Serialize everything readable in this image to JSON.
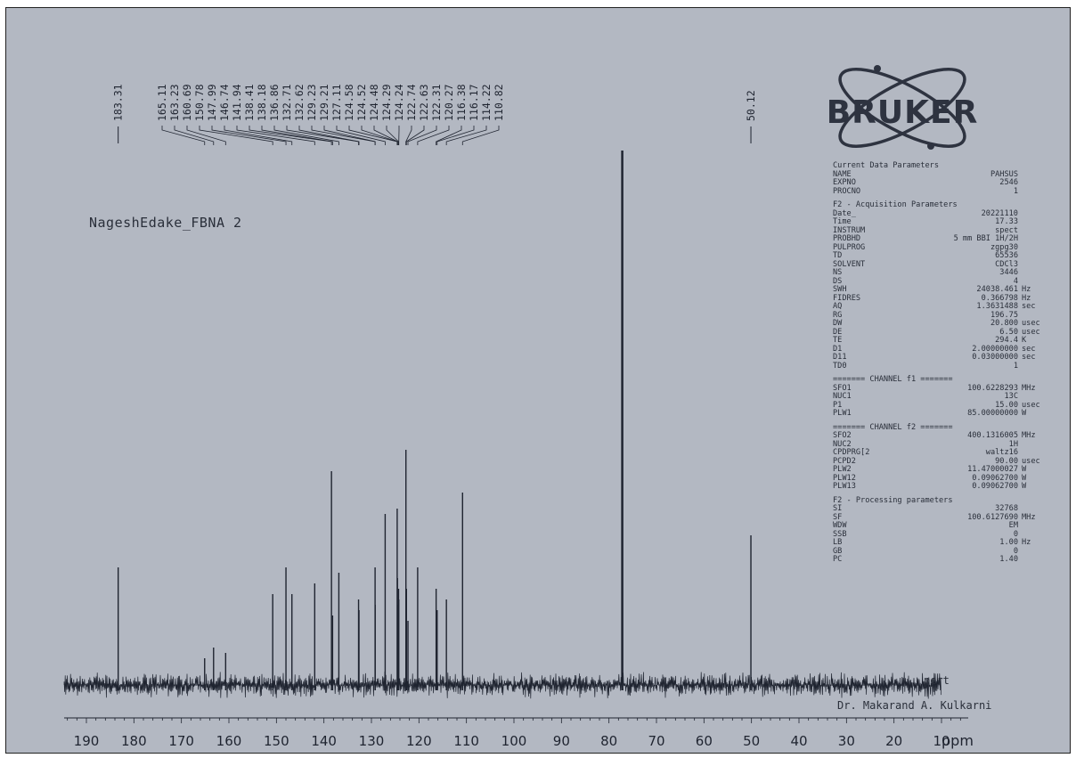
{
  "sample": {
    "name": "NageshEdake_FBNA 2"
  },
  "logo": {
    "text": "BRUKER"
  },
  "acquisition_params": {
    "current_title": "Current Data Parameters",
    "current": [
      [
        "NAME",
        "PAHSUS",
        ""
      ],
      [
        "EXPNO",
        "2546",
        ""
      ],
      [
        "PROCNO",
        "1",
        ""
      ]
    ],
    "f2_acq_title": "F2 - Acquisition Parameters",
    "f2_acq": [
      [
        "Date_",
        "20221110",
        ""
      ],
      [
        "Time",
        "17.33",
        ""
      ],
      [
        "INSTRUM",
        "spect",
        ""
      ],
      [
        "PROBHD",
        "5 mm BBI 1H/2H",
        ""
      ],
      [
        "PULPROG",
        "zgpg30",
        ""
      ],
      [
        "TD",
        "65536",
        ""
      ],
      [
        "SOLVENT",
        "CDCl3",
        ""
      ],
      [
        "NS",
        "3446",
        ""
      ],
      [
        "DS",
        "4",
        ""
      ],
      [
        "SWH",
        "24038.461",
        "Hz"
      ],
      [
        "FIDRES",
        "0.366798",
        "Hz"
      ],
      [
        "AQ",
        "1.3631488",
        "sec"
      ],
      [
        "RG",
        "196.75",
        ""
      ],
      [
        "DW",
        "20.800",
        "usec"
      ],
      [
        "DE",
        "6.50",
        "usec"
      ],
      [
        "TE",
        "294.4",
        "K"
      ],
      [
        "D1",
        "2.00000000",
        "sec"
      ],
      [
        "D11",
        "0.03000000",
        "sec"
      ],
      [
        "TD0",
        "1",
        ""
      ]
    ],
    "ch1_title": "======= CHANNEL f1 =======",
    "ch1": [
      [
        "SFO1",
        "100.6228293",
        "MHz"
      ],
      [
        "NUC1",
        "13C",
        ""
      ],
      [
        "P1",
        "15.00",
        "usec"
      ],
      [
        "PLW1",
        "85.00000000",
        "W"
      ]
    ],
    "ch2_title": "======= CHANNEL f2 =======",
    "ch2": [
      [
        "SFO2",
        "400.1316005",
        "MHz"
      ],
      [
        "NUC2",
        "1H",
        ""
      ],
      [
        "CPDPRG[2",
        "waltz16",
        ""
      ],
      [
        "PCPD2",
        "90.00",
        "usec"
      ],
      [
        "PLW2",
        "11.47000027",
        "W"
      ],
      [
        "PLW12",
        "0.09062700",
        "W"
      ],
      [
        "PLW13",
        "0.09062700",
        "W"
      ]
    ],
    "proc_title": "F2 - Processing parameters",
    "proc": [
      [
        "SI",
        "32768",
        ""
      ],
      [
        "SF",
        "100.6127690",
        "MHz"
      ],
      [
        "WDW",
        "EM",
        ""
      ],
      [
        "SSB",
        "0",
        ""
      ],
      [
        "LB",
        "1.00",
        "Hz"
      ],
      [
        "GB",
        "0",
        ""
      ],
      [
        "PC",
        "1.40",
        ""
      ]
    ]
  },
  "operator": {
    "line1": "pert",
    "line2": "Dr. Makarand A. Kulkarni"
  },
  "chart_data": {
    "type": "line",
    "title": "",
    "xlabel": "ppm",
    "x_reversed": true,
    "xlim": [
      200,
      0
    ],
    "x_ticks": [
      "190",
      "180",
      "170",
      "160",
      "150",
      "140",
      "130",
      "120",
      "110",
      "100",
      "90",
      "80",
      "70",
      "60",
      "50",
      "40",
      "30",
      "20",
      "10"
    ],
    "peak_labels": [
      "183.31",
      "165.11",
      "163.23",
      "160.69",
      "150.78",
      "147.99",
      "146.74",
      "141.94",
      "138.41",
      "138.18",
      "136.86",
      "132.71",
      "132.62",
      "129.23",
      "129.21",
      "127.11",
      "124.58",
      "124.52",
      "124.48",
      "124.29",
      "124.24",
      "122.74",
      "122.63",
      "122.31",
      "120.27",
      "116.38",
      "116.17",
      "114.22",
      "110.82",
      "50.12"
    ],
    "peaks": [
      {
        "ppm": 183.31,
        "intensity": 0.22
      },
      {
        "ppm": 165.11,
        "intensity": 0.05
      },
      {
        "ppm": 163.23,
        "intensity": 0.07
      },
      {
        "ppm": 160.69,
        "intensity": 0.06
      },
      {
        "ppm": 150.78,
        "intensity": 0.17
      },
      {
        "ppm": 147.99,
        "intensity": 0.22
      },
      {
        "ppm": 146.74,
        "intensity": 0.17
      },
      {
        "ppm": 141.94,
        "intensity": 0.19
      },
      {
        "ppm": 138.41,
        "intensity": 0.4
      },
      {
        "ppm": 138.18,
        "intensity": 0.13
      },
      {
        "ppm": 136.86,
        "intensity": 0.21
      },
      {
        "ppm": 132.71,
        "intensity": 0.16
      },
      {
        "ppm": 132.62,
        "intensity": 0.14
      },
      {
        "ppm": 129.23,
        "intensity": 0.22
      },
      {
        "ppm": 129.21,
        "intensity": 0.15
      },
      {
        "ppm": 127.11,
        "intensity": 0.32
      },
      {
        "ppm": 124.58,
        "intensity": 0.33
      },
      {
        "ppm": 124.52,
        "intensity": 0.2
      },
      {
        "ppm": 124.48,
        "intensity": 0.15
      },
      {
        "ppm": 124.29,
        "intensity": 0.18
      },
      {
        "ppm": 124.24,
        "intensity": 0.16
      },
      {
        "ppm": 122.74,
        "intensity": 0.44
      },
      {
        "ppm": 122.63,
        "intensity": 0.18
      },
      {
        "ppm": 122.31,
        "intensity": 0.12
      },
      {
        "ppm": 120.27,
        "intensity": 0.22
      },
      {
        "ppm": 116.38,
        "intensity": 0.18
      },
      {
        "ppm": 116.17,
        "intensity": 0.14
      },
      {
        "ppm": 114.22,
        "intensity": 0.16
      },
      {
        "ppm": 110.82,
        "intensity": 0.36
      },
      {
        "ppm": 77.2,
        "intensity": 1.0
      },
      {
        "ppm": 50.12,
        "intensity": 0.28
      }
    ]
  }
}
